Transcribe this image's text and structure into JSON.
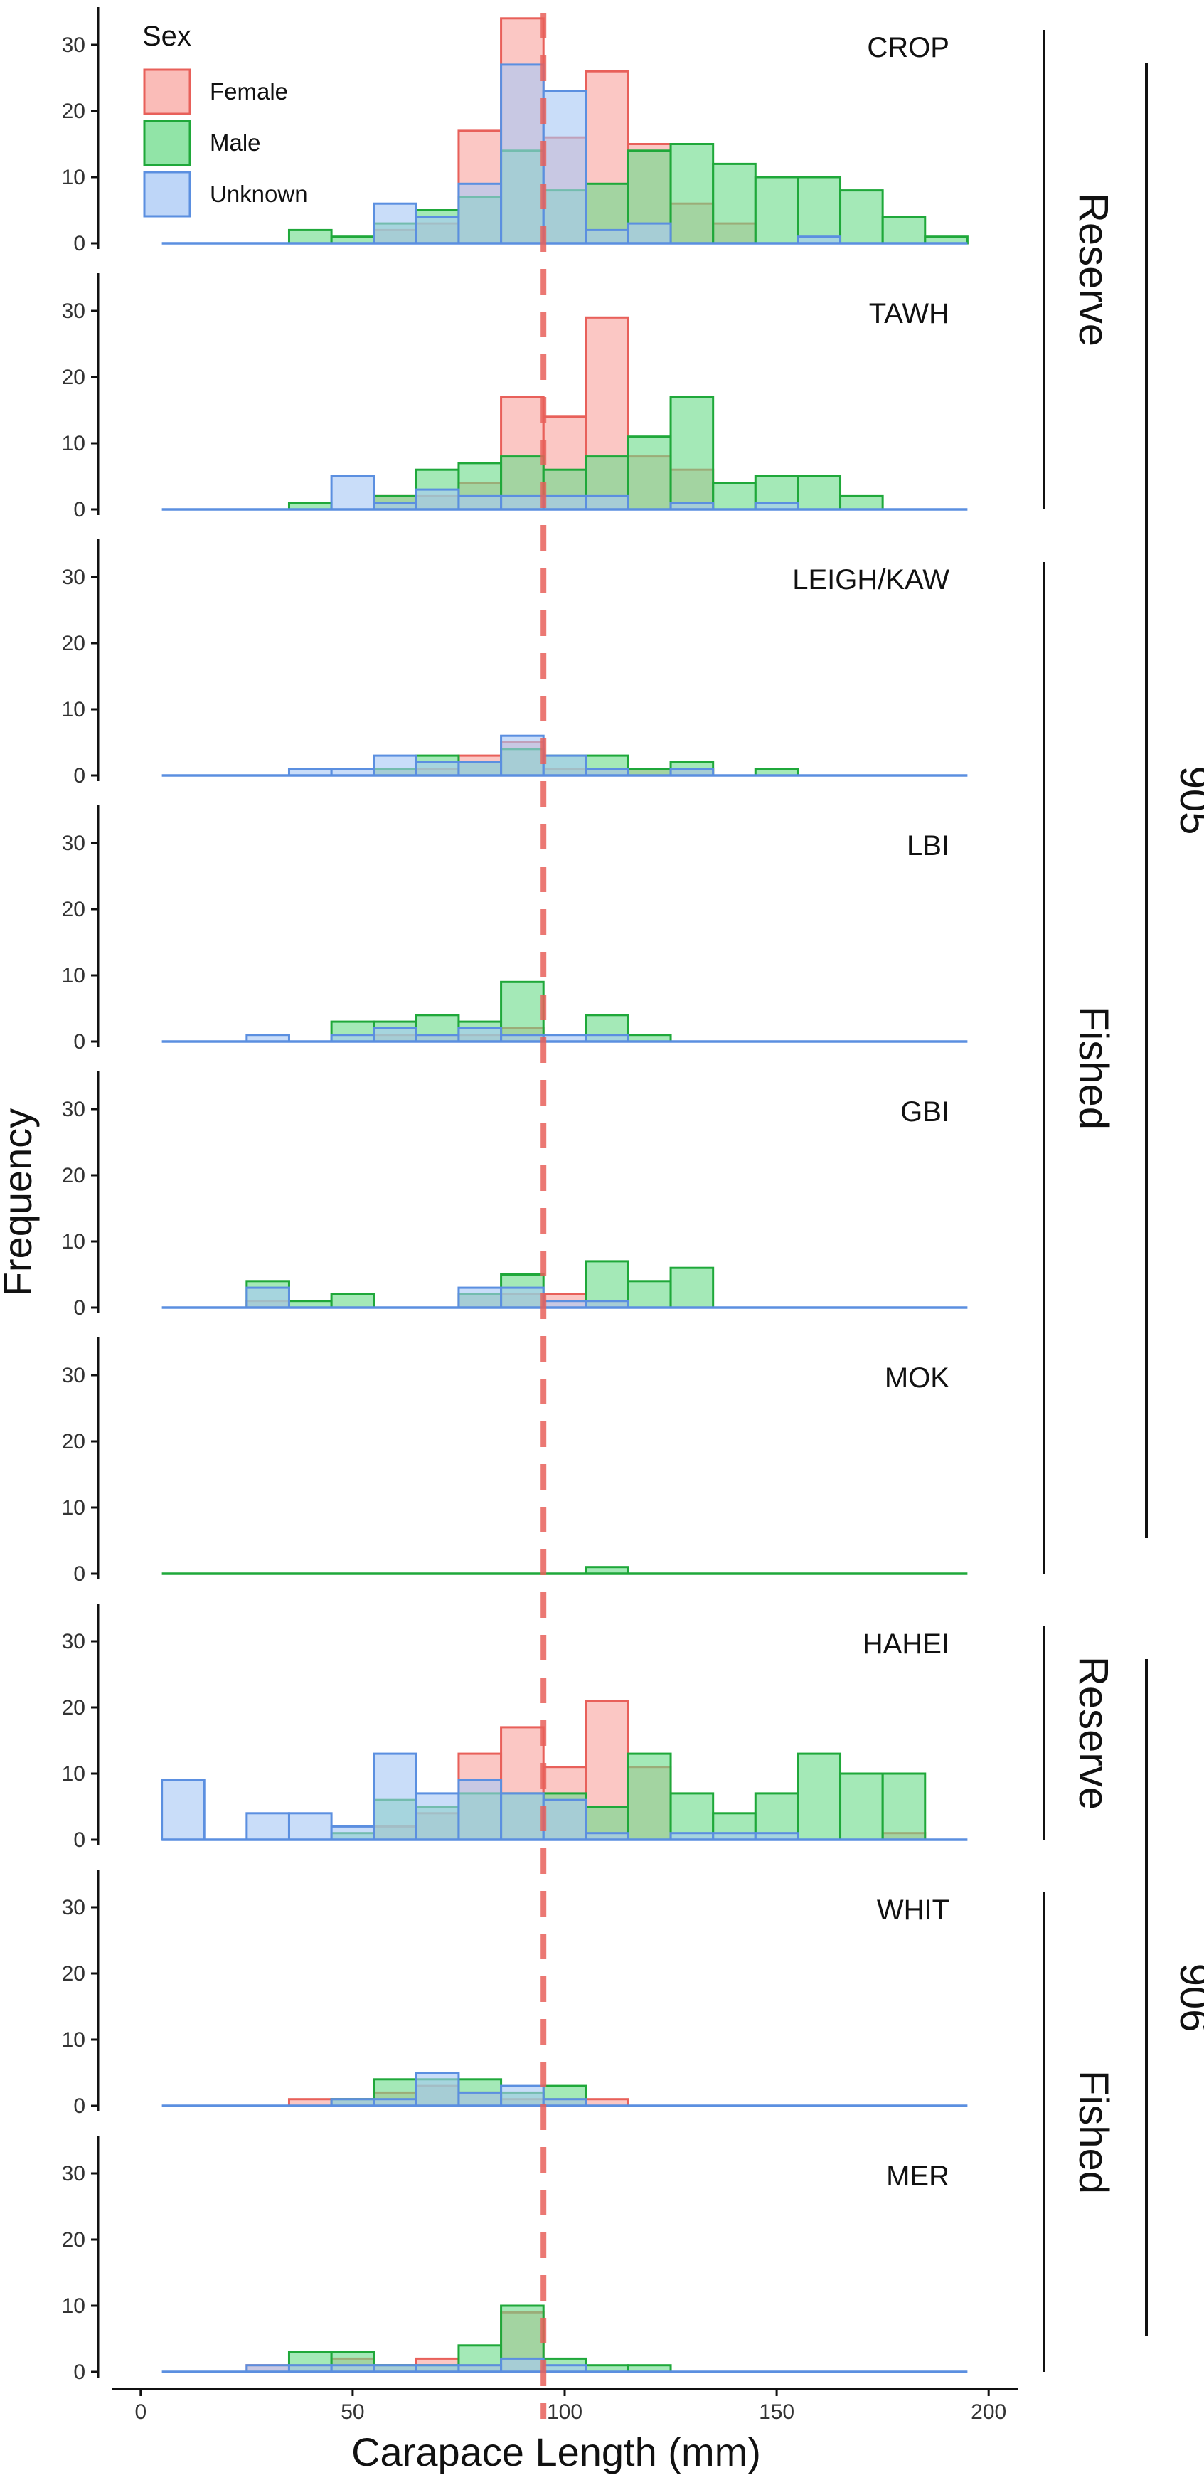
{
  "chart_data": {
    "type": "bar",
    "subtype": "overlaid faceted histogram",
    "xlabel": "Carapace Length (mm)",
    "ylabel": "Frequency",
    "xlim": [
      -5,
      205
    ],
    "x_ticks": [
      0,
      50,
      100,
      150,
      200
    ],
    "ylim": [
      0,
      35
    ],
    "y_ticks": [
      0,
      10,
      20,
      30
    ],
    "bin_width": 10,
    "bin_starts": [
      5,
      15,
      25,
      35,
      45,
      55,
      65,
      75,
      85,
      95,
      105,
      115,
      125,
      135,
      145,
      155,
      165,
      175,
      185
    ],
    "reference_line_x": 95,
    "legend": {
      "title": "Sex",
      "position": "top-left",
      "entries": [
        {
          "key": "female",
          "label": "Female",
          "fill": "#F8A5A0",
          "stroke": "#E8605A"
        },
        {
          "key": "male",
          "label": "Male",
          "fill": "#6CDB8A",
          "stroke": "#1FA83A"
        },
        {
          "key": "unknown",
          "label": "Unknown",
          "fill": "#A8C8F5",
          "stroke": "#5B8FE0"
        }
      ]
    },
    "reference_line_color": "#E8605A",
    "groups": [
      {
        "label": "Reserve",
        "panels": [
          0,
          1
        ]
      },
      {
        "label": "Fished",
        "panels": [
          2,
          3,
          4,
          5
        ]
      },
      {
        "label": "Reserve",
        "panels": [
          6
        ]
      },
      {
        "label": "Fished",
        "panels": [
          7,
          8
        ]
      }
    ],
    "areas": [
      {
        "label": "905",
        "panels": [
          0,
          5
        ]
      },
      {
        "label": "906",
        "panels": [
          6,
          8
        ]
      }
    ],
    "panels": [
      {
        "site": "CROP",
        "female": [
          0,
          0,
          0,
          0,
          0,
          2,
          3,
          17,
          34,
          16,
          26,
          15,
          6,
          3,
          0,
          0,
          0,
          0,
          0
        ],
        "male": [
          0,
          0,
          0,
          2,
          1,
          3,
          5,
          7,
          14,
          8,
          9,
          14,
          15,
          12,
          10,
          10,
          8,
          4,
          1
        ],
        "unknown": [
          0,
          0,
          0,
          0,
          0,
          6,
          4,
          9,
          27,
          23,
          2,
          3,
          0,
          0,
          0,
          1,
          0,
          0,
          0
        ]
      },
      {
        "site": "TAWH",
        "female": [
          0,
          0,
          0,
          0,
          0,
          2,
          2,
          4,
          17,
          14,
          29,
          8,
          6,
          0,
          0,
          0,
          0,
          0,
          0
        ],
        "male": [
          0,
          0,
          0,
          1,
          0,
          2,
          6,
          7,
          8,
          6,
          8,
          11,
          17,
          4,
          5,
          5,
          2,
          0,
          0
        ],
        "unknown": [
          0,
          0,
          0,
          0,
          5,
          1,
          3,
          2,
          2,
          2,
          2,
          0,
          1,
          0,
          1,
          0,
          0,
          0,
          0
        ]
      },
      {
        "site": "LEIGH/KAW",
        "female": [
          0,
          0,
          0,
          0,
          0,
          1,
          1,
          3,
          5,
          1,
          1,
          1,
          1,
          0,
          0,
          0,
          0,
          0,
          0
        ],
        "male": [
          0,
          0,
          0,
          0,
          0,
          1,
          3,
          2,
          4,
          3,
          3,
          1,
          2,
          0,
          1,
          0,
          0,
          0,
          0
        ],
        "unknown": [
          0,
          0,
          0,
          1,
          1,
          3,
          2,
          2,
          6,
          3,
          1,
          0,
          1,
          0,
          0,
          0,
          0,
          0,
          0
        ]
      },
      {
        "site": "LBI",
        "female": [
          0,
          0,
          0,
          0,
          0,
          1,
          1,
          1,
          2,
          0,
          0,
          0,
          0,
          0,
          0,
          0,
          0,
          0,
          0
        ],
        "male": [
          0,
          0,
          0,
          0,
          3,
          3,
          4,
          3,
          9,
          0,
          4,
          1,
          0,
          0,
          0,
          0,
          0,
          0,
          0
        ],
        "unknown": [
          0,
          0,
          1,
          0,
          1,
          2,
          1,
          2,
          1,
          1,
          1,
          0,
          0,
          0,
          0,
          0,
          0,
          0,
          0
        ]
      },
      {
        "site": "GBI",
        "female": [
          0,
          0,
          1,
          0,
          0,
          0,
          0,
          2,
          2,
          2,
          1,
          0,
          0,
          0,
          0,
          0,
          0,
          0,
          0
        ],
        "male": [
          0,
          0,
          4,
          1,
          2,
          0,
          0,
          2,
          5,
          0,
          7,
          4,
          6,
          0,
          0,
          0,
          0,
          0,
          0
        ],
        "unknown": [
          0,
          0,
          3,
          0,
          0,
          0,
          0,
          3,
          3,
          1,
          1,
          0,
          0,
          0,
          0,
          0,
          0,
          0,
          0
        ]
      },
      {
        "site": "MOK",
        "female": [
          0,
          0,
          0,
          0,
          0,
          0,
          0,
          0,
          0,
          0,
          0,
          0,
          0,
          0,
          0,
          0,
          0,
          0,
          0
        ],
        "male": [
          0,
          0,
          0,
          0,
          0,
          0,
          0,
          0,
          0,
          0,
          1,
          0,
          0,
          0,
          0,
          0,
          0,
          0,
          0
        ],
        "unknown": [
          0,
          0,
          0,
          0,
          0,
          0,
          0,
          0,
          0,
          0,
          0,
          0,
          0,
          0,
          0,
          0,
          0,
          0,
          0
        ]
      },
      {
        "site": "HAHEI",
        "female": [
          0,
          0,
          0,
          0,
          0,
          2,
          4,
          13,
          17,
          11,
          21,
          11,
          0,
          0,
          0,
          0,
          0,
          1,
          0
        ],
        "male": [
          0,
          0,
          0,
          0,
          1,
          6,
          5,
          7,
          7,
          7,
          5,
          13,
          7,
          4,
          7,
          13,
          10,
          10,
          0
        ],
        "unknown": [
          9,
          0,
          4,
          4,
          2,
          13,
          7,
          9,
          7,
          6,
          1,
          0,
          1,
          1,
          1,
          0,
          0,
          0,
          0
        ]
      },
      {
        "site": "WHIT",
        "female": [
          0,
          0,
          0,
          1,
          1,
          2,
          3,
          2,
          1,
          1,
          1,
          0,
          0,
          0,
          0,
          0,
          0,
          0,
          0
        ],
        "male": [
          0,
          0,
          0,
          0,
          1,
          4,
          4,
          4,
          2,
          3,
          0,
          0,
          0,
          0,
          0,
          0,
          0,
          0,
          0
        ],
        "unknown": [
          0,
          0,
          0,
          0,
          1,
          1,
          5,
          2,
          3,
          1,
          0,
          0,
          0,
          0,
          0,
          0,
          0,
          0,
          0
        ]
      },
      {
        "site": "MER",
        "female": [
          0,
          0,
          1,
          1,
          2,
          1,
          2,
          1,
          9,
          0,
          0,
          0,
          0,
          0,
          0,
          0,
          0,
          0,
          0
        ],
        "male": [
          0,
          0,
          0,
          3,
          3,
          1,
          1,
          4,
          10,
          2,
          1,
          1,
          0,
          0,
          0,
          0,
          0,
          0,
          0
        ],
        "unknown": [
          0,
          0,
          1,
          1,
          1,
          1,
          1,
          1,
          2,
          1,
          0,
          0,
          0,
          0,
          0,
          0,
          0,
          0,
          0
        ]
      }
    ]
  }
}
